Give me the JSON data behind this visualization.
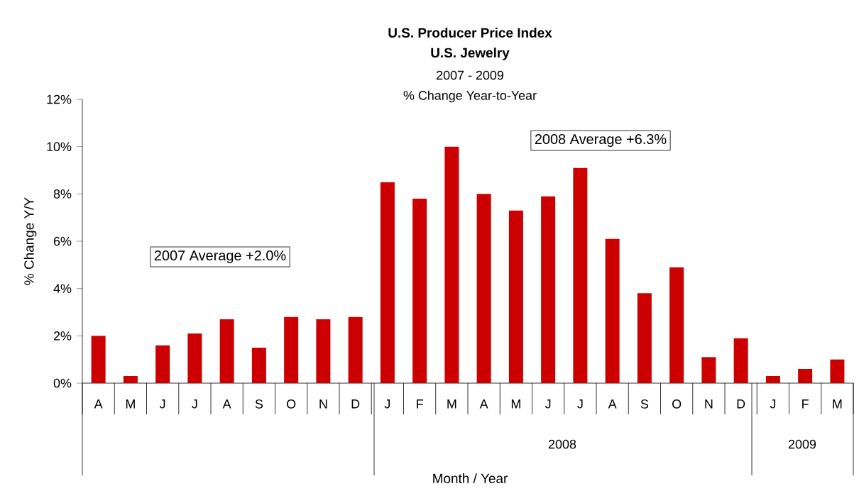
{
  "chart_data": {
    "type": "bar",
    "title": "U.S. Producer Price Index",
    "subtitle": "U.S. Jewelry",
    "xlabel": "Month / Year",
    "ylabel": "% Change Y/Y",
    "categories": [
      "A",
      "M",
      "J",
      "J",
      "A",
      "S",
      "O",
      "N",
      "D",
      "J",
      "F",
      "M",
      "A",
      "M",
      "J",
      "J",
      "A",
      "S",
      "O",
      "N",
      "D",
      "J",
      "F",
      "M"
    ],
    "values": [
      2.0,
      0.3,
      1.6,
      2.1,
      2.7,
      1.5,
      2.8,
      2.7,
      2.8,
      8.5,
      7.8,
      10.0,
      8.0,
      7.3,
      7.9,
      9.1,
      6.1,
      3.8,
      4.9,
      1.1,
      1.9,
      0.3,
      0.6,
      1.0
    ],
    "color": "#cc0000",
    "ylim": [
      0,
      12
    ],
    "yticks": [
      {
        "value": 0,
        "label": "0%"
      },
      {
        "value": 2,
        "label": "2%"
      },
      {
        "value": 4,
        "label": "4%"
      },
      {
        "value": 6,
        "label": "6%"
      },
      {
        "value": 8,
        "label": "8%"
      },
      {
        "value": 10,
        "label": "10%"
      },
      {
        "value": 12,
        "label": "12%"
      }
    ],
    "annotations": [
      "2007 - 2009",
      "% Change Year-to-Year",
      "2007 Average +2.0%",
      "2008 Average +6.3%",
      "2008",
      "2009"
    ]
  }
}
